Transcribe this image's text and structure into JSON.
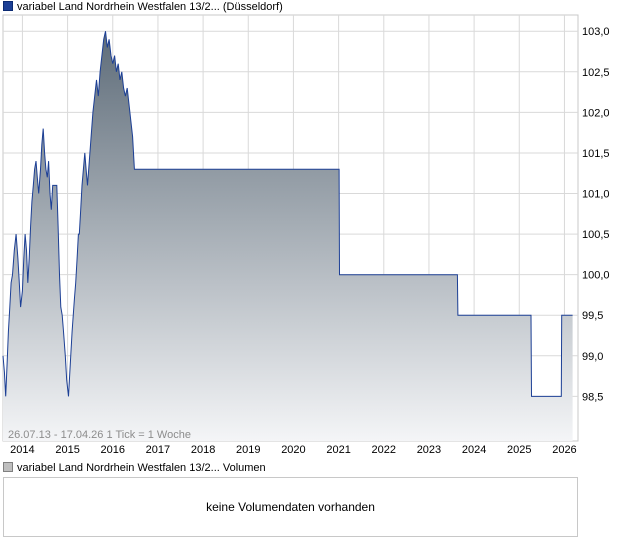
{
  "header": {
    "price_legend": "variabel Land Nordrhein Westfalen 13/2... (Düsseldorf)",
    "volume_legend": "variabel Land Nordrhein Westfalen 13/2... Volumen"
  },
  "info_text": "26.07.13 - 17.04.26   1 Tick = 1 Woche",
  "volume_message": "keine Volumendaten vorhanden",
  "colors": {
    "line": "#1c3f95",
    "fill_top": "#5e6c79",
    "fill_bottom": "#f4f5f7",
    "grid": "#d9d9d9"
  },
  "chart_data": {
    "type": "area",
    "x_tick_labels": [
      "2014",
      "2015",
      "2016",
      "2017",
      "2018",
      "2019",
      "2020",
      "2021",
      "2022",
      "2023",
      "2024",
      "2025",
      "2026"
    ],
    "y_tick_labels": [
      "98,5",
      "99,0",
      "99,5",
      "100,0",
      "100,5",
      "101,0",
      "101,5",
      "102,0",
      "102,5",
      "103,0"
    ],
    "y_ticks": [
      98.5,
      99.0,
      99.5,
      100.0,
      100.5,
      101.0,
      101.5,
      102.0,
      102.5,
      103.0
    ],
    "ylim": [
      97.95,
      103.2
    ],
    "xlim": [
      2013.57,
      2026.3
    ],
    "grid": true,
    "series": [
      {
        "x": [
          2013.57,
          2013.6,
          2013.63,
          2013.66,
          2013.69,
          2013.72,
          2013.75,
          2013.78,
          2013.82,
          2013.86,
          2013.9,
          2013.93,
          2013.96,
          2014.0,
          2014.03,
          2014.06,
          2014.09,
          2014.12,
          2014.15,
          2014.18,
          2014.21,
          2014.24,
          2014.27,
          2014.3,
          2014.33,
          2014.36,
          2014.4,
          2014.43,
          2014.46,
          2014.49,
          2014.52,
          2014.55,
          2014.58,
          2014.61,
          2014.64,
          2014.67,
          2014.7,
          2014.73,
          2014.76,
          2014.79,
          2014.82,
          2014.85,
          2014.88,
          2014.91,
          2014.95,
          2014.98,
          2015.02,
          2015.06,
          2015.1,
          2015.15,
          2015.18,
          2015.21,
          2015.24,
          2015.26,
          2015.29,
          2015.32,
          2015.35,
          2015.38,
          2015.41,
          2015.44,
          2015.48,
          2015.52,
          2015.56,
          2015.6,
          2015.64,
          2015.68,
          2015.72,
          2015.76,
          2015.8,
          2015.84,
          2015.88,
          2015.92,
          2015.96,
          2016.0,
          2016.04,
          2016.08,
          2016.12,
          2016.16,
          2016.2,
          2016.24,
          2016.28,
          2016.32,
          2016.36,
          2016.4,
          2016.44,
          2016.48,
          2016.52,
          2016.56,
          2016.6,
          2016.64,
          2016.68,
          2016.72,
          2016.76,
          2016.8,
          2016.84,
          2016.88,
          2016.92,
          2016.93,
          2021.01,
          2021.02,
          2023.63,
          2023.64,
          2025.26,
          2025.27,
          2025.93,
          2025.94,
          2026.18
        ],
        "y": [
          99.0,
          98.8,
          98.5,
          98.9,
          99.3,
          99.6,
          99.9,
          100.0,
          100.3,
          100.5,
          100.2,
          99.9,
          99.6,
          99.8,
          100.2,
          100.5,
          100.3,
          99.9,
          100.2,
          100.6,
          100.9,
          101.1,
          101.3,
          101.4,
          101.2,
          101.0,
          101.3,
          101.6,
          101.8,
          101.5,
          101.3,
          101.2,
          101.4,
          101.0,
          100.8,
          101.1,
          101.1,
          101.1,
          101.1,
          100.6,
          100.0,
          99.6,
          99.5,
          99.3,
          99.0,
          98.7,
          98.5,
          98.9,
          99.3,
          99.7,
          99.9,
          100.2,
          100.5,
          100.5,
          100.8,
          101.1,
          101.3,
          101.5,
          101.3,
          101.1,
          101.4,
          101.7,
          102.0,
          102.2,
          102.4,
          102.2,
          102.5,
          102.7,
          102.9,
          103.0,
          102.8,
          102.9,
          102.7,
          102.6,
          102.7,
          102.5,
          102.6,
          102.4,
          102.5,
          102.3,
          102.2,
          102.3,
          102.1,
          101.9,
          101.7,
          101.3,
          101.3,
          101.3,
          101.3,
          101.3,
          101.3,
          101.3,
          101.3,
          101.3,
          101.3,
          101.3,
          101.3,
          101.3,
          101.3,
          100.0,
          100.0,
          99.5,
          99.5,
          98.5,
          98.5,
          99.5,
          99.5
        ]
      }
    ]
  }
}
